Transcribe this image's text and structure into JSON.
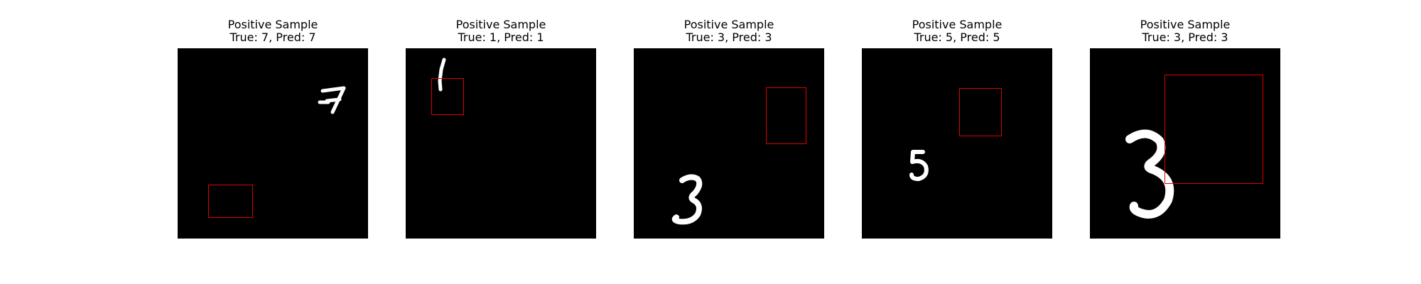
{
  "panels": [
    {
      "heading": "Positive Sample",
      "subtitle": "True: 7, Pred: 7",
      "digit": "7"
    },
    {
      "heading": "Positive Sample",
      "subtitle": "True: 1, Pred: 1",
      "digit": "1"
    },
    {
      "heading": "Positive Sample",
      "subtitle": "True: 3, Pred: 3",
      "digit": "3"
    },
    {
      "heading": "Positive Sample",
      "subtitle": "True: 5, Pred: 5",
      "digit": "5"
    },
    {
      "heading": "Positive Sample",
      "subtitle": "True: 3, Pred: 3",
      "digit": "3"
    }
  ],
  "colors": {
    "background": "#000000",
    "digit": "#ffffff",
    "box": "#e00000"
  }
}
